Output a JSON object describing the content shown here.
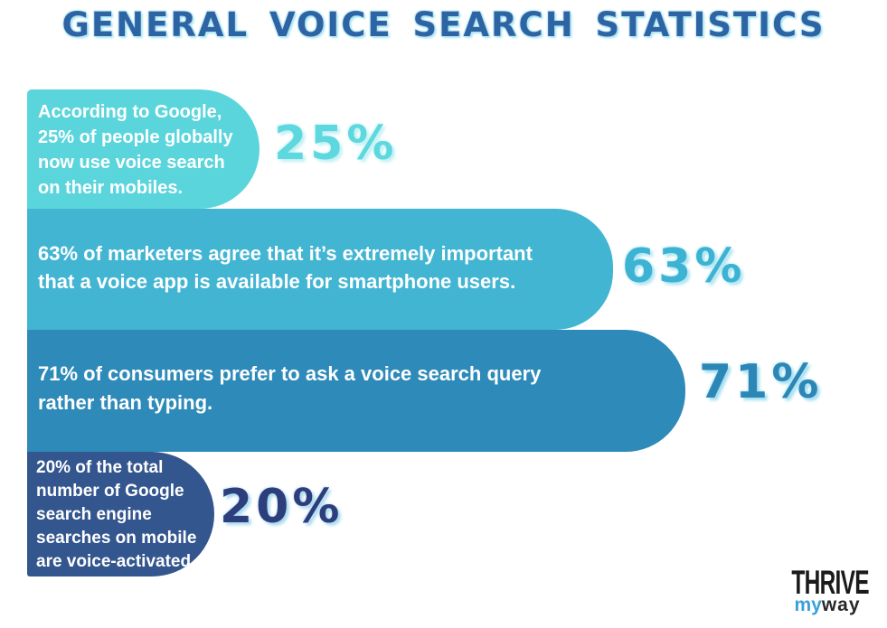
{
  "title": "GENERAL VOICE SEARCH STATISTICS",
  "stats": [
    {
      "text": "According to Google,\n25% of people globally\nnow use voice search\non their mobiles.",
      "value_label": "25%",
      "value": 25,
      "bar_color": "#5bd5dc",
      "label_color": "#5dd8df"
    },
    {
      "text": "63% of marketers agree that it’s extremely important\nthat a voice app is available for smartphone users.",
      "value_label": "63%",
      "value": 63,
      "bar_color": "#42b5d3",
      "label_color": "#3cb3d3"
    },
    {
      "text": "71% of consumers prefer to ask a voice search query\nrather than typing.",
      "value_label": "71%",
      "value": 71,
      "bar_color": "#2e8ab8",
      "label_color": "#2c87b7"
    },
    {
      "text": "20% of the total\nnumber of Google\nsearch engine\nsearches on mobile\nare voice-activated",
      "value_label": "20%",
      "value": 20,
      "bar_color": "#33568e",
      "label_color": "#2d3e7c"
    }
  ],
  "chart_data": {
    "type": "bar",
    "orientation": "horizontal",
    "title": "GENERAL VOICE SEARCH STATISTICS",
    "categories": [
      "According to Google, 25% of people globally now use voice search on their mobiles.",
      "63% of marketers agree that it’s extremely important that a voice app is available for smartphone users.",
      "71% of consumers prefer to ask a voice search query rather than typing.",
      "20% of the total number of Google search engine searches on mobile are voice-activated"
    ],
    "values": [
      25,
      63,
      71,
      20
    ],
    "unit": "%",
    "data_labels": [
      "25%",
      "63%",
      "71%",
      "20%"
    ],
    "bar_colors": [
      "#5bd5dc",
      "#42b5d3",
      "#2e8ab8",
      "#33568e"
    ],
    "legend": "none",
    "grid": "off",
    "note": "infographic-style bars; lengths not strictly proportional to values"
  },
  "title_color": "#2e63a4",
  "logo": {
    "brand_top": "THRIVE",
    "brand_bottom_left": "my",
    "brand_bottom_right": "way",
    "accent_color": "#3aa0da",
    "text_color": "#1b1b1d"
  }
}
